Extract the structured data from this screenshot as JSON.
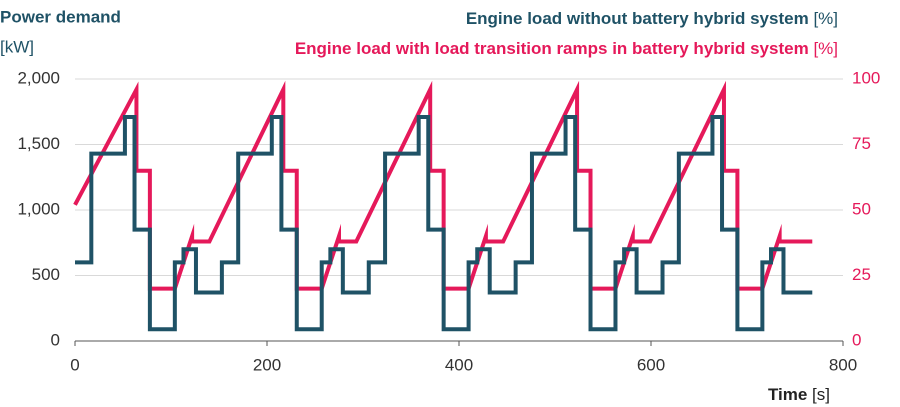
{
  "chart_data": {
    "type": "line",
    "y_title": "Power demand",
    "y_unit": "[kW]",
    "x_title": "Time",
    "x_unit": "[s]",
    "legend": [
      {
        "name": "Engine load without battery hybrid system",
        "unit": "[%]"
      },
      {
        "name": "Engine load with load transition ramps in battery hybrid system",
        "unit": "[%]"
      }
    ],
    "xlim": [
      0,
      800
    ],
    "xticks": [
      0,
      200,
      400,
      600,
      800
    ],
    "ylim": [
      0,
      2000
    ],
    "yticks": [
      0,
      500,
      {
        "value": 1000,
        "label": "1,000"
      },
      {
        "value": 1500,
        "label": "1,500"
      },
      {
        "value": 2000,
        "label": "2,000"
      }
    ],
    "y2lim": [
      0,
      100
    ],
    "y2ticks": [
      0,
      25,
      50,
      75,
      100
    ],
    "grid": true,
    "series": [
      {
        "color": "#1f5266",
        "axis": "y",
        "x": [
          0,
          17,
          17,
          52,
          52,
          62,
          62,
          78,
          78,
          104,
          104,
          113,
          113,
          126,
          126,
          153,
          153,
          170,
          170,
          205,
          205,
          215,
          215,
          231,
          231,
          257,
          257,
          266,
          266,
          279,
          279,
          306,
          306,
          323,
          323,
          358,
          358,
          368,
          368,
          384,
          384,
          410,
          410,
          419,
          419,
          432,
          432,
          459,
          459,
          476,
          476,
          511,
          511,
          521,
          521,
          537,
          537,
          563,
          563,
          572,
          572,
          585,
          585,
          612,
          612,
          629,
          629,
          664,
          664,
          674,
          674,
          690,
          690,
          716,
          716,
          725,
          725,
          738,
          738,
          768
        ],
        "values": [
          600,
          600,
          1430,
          1430,
          1710,
          1710,
          850,
          850,
          90,
          90,
          600,
          600,
          700,
          700,
          370,
          370,
          600,
          600,
          1430,
          1430,
          1710,
          1710,
          850,
          850,
          90,
          90,
          600,
          600,
          700,
          700,
          370,
          370,
          600,
          600,
          1430,
          1430,
          1710,
          1710,
          850,
          850,
          90,
          90,
          600,
          600,
          700,
          700,
          370,
          370,
          600,
          600,
          1430,
          1430,
          1710,
          1710,
          850,
          850,
          90,
          90,
          600,
          600,
          700,
          700,
          370,
          370,
          600,
          600,
          1430,
          1430,
          1710,
          1710,
          850,
          850,
          90,
          90,
          600,
          600,
          700,
          700,
          370,
          370
        ]
      },
      {
        "color": "#e5195a",
        "axis": "y2",
        "x": [
          0,
          64,
          64,
          78,
          78,
          104,
          122,
          122,
          140,
          217,
          217,
          231,
          231,
          257,
          275,
          275,
          293,
          370,
          370,
          384,
          384,
          410,
          428,
          428,
          446,
          523,
          523,
          537,
          537,
          563,
          581,
          581,
          599,
          676,
          676,
          690,
          690,
          716,
          734,
          734,
          768
        ],
        "values": [
          52,
          96,
          65,
          65,
          20,
          20,
          40,
          38,
          38,
          96,
          65,
          65,
          20,
          20,
          40,
          38,
          38,
          96,
          65,
          65,
          20,
          20,
          40,
          38,
          38,
          96,
          65,
          65,
          20,
          20,
          40,
          38,
          38,
          96,
          65,
          65,
          20,
          20,
          40,
          38,
          38
        ]
      }
    ]
  }
}
